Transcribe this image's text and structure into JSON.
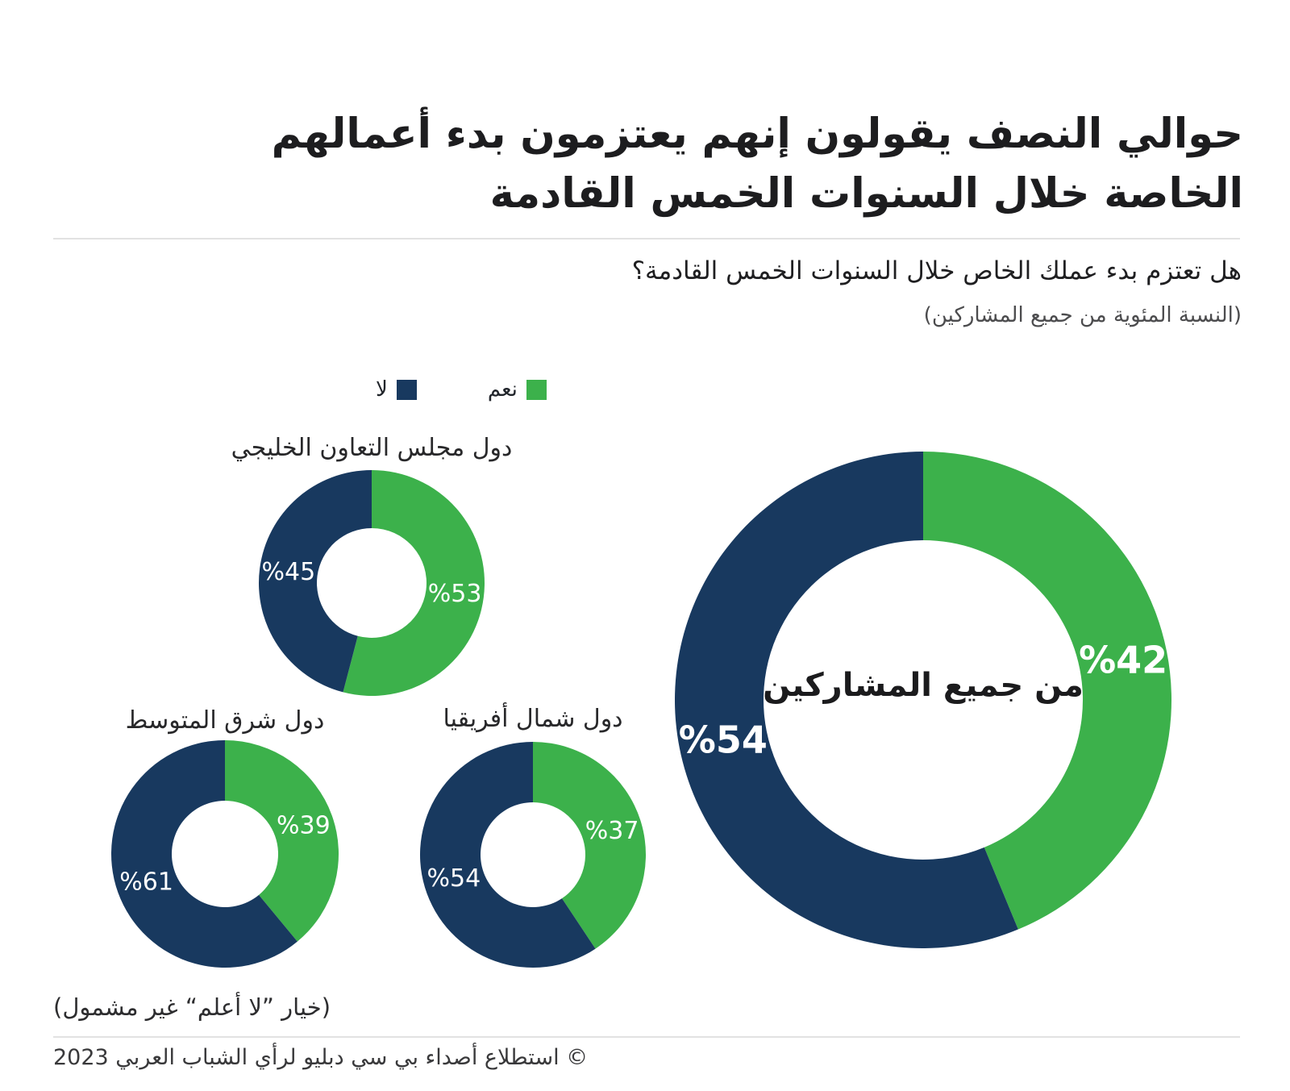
{
  "page": {
    "title": "حوالي النصف يقولون إنهم يعتزمون بدء أعمالهم\nالخاصة خلال السنوات الخمس القادمة",
    "question": "هل تعتزم بدء عملك الخاص خلال السنوات الخمس القادمة؟",
    "question_note": "(النسبة المئوية من جميع المشاركين)",
    "footnote": "(خيار ”لا أعلم“ غير مشمول)",
    "copyright": "© استطلاع أصداء بي سي دبليو لرأي الشباب العربي 2023"
  },
  "colors": {
    "yes": "#3cb14b",
    "no": "#18395f",
    "value_label": "#ffffff",
    "center_label": "#1b1b1d"
  },
  "legend": {
    "items": [
      {
        "key": "yes",
        "label": "نعم"
      },
      {
        "key": "no",
        "label": "لا"
      }
    ]
  },
  "chart_data": [
    {
      "id": "all-participants",
      "type": "pie",
      "variant": "donut",
      "title": "من جميع المشاركين",
      "title_position": "center",
      "units": "percent",
      "slices": [
        {
          "key": "yes",
          "label": "نعم",
          "value": 42,
          "value_label": "%42"
        },
        {
          "key": "no",
          "label": "لا",
          "value": 54,
          "value_label": "%54"
        }
      ]
    },
    {
      "id": "gcc",
      "type": "pie",
      "variant": "donut",
      "title": "دول مجلس التعاون الخليجي",
      "title_position": "top",
      "units": "percent",
      "slices": [
        {
          "key": "yes",
          "label": "نعم",
          "value": 53,
          "value_label": "%53"
        },
        {
          "key": "no",
          "label": "لا",
          "value": 45,
          "value_label": "%45"
        }
      ]
    },
    {
      "id": "east-mediterranean",
      "type": "pie",
      "variant": "donut",
      "title": "دول شرق المتوسط",
      "title_position": "top",
      "units": "percent",
      "slices": [
        {
          "key": "yes",
          "label": "نعم",
          "value": 39,
          "value_label": "%39"
        },
        {
          "key": "no",
          "label": "لا",
          "value": 61,
          "value_label": "%61"
        }
      ]
    },
    {
      "id": "north-africa",
      "type": "pie",
      "variant": "donut",
      "title": "دول شمال أفريقيا",
      "title_position": "top",
      "units": "percent",
      "slices": [
        {
          "key": "yes",
          "label": "نعم",
          "value": 37,
          "value_label": "%37"
        },
        {
          "key": "no",
          "label": "لا",
          "value": 54,
          "value_label": "%54"
        }
      ]
    }
  ]
}
